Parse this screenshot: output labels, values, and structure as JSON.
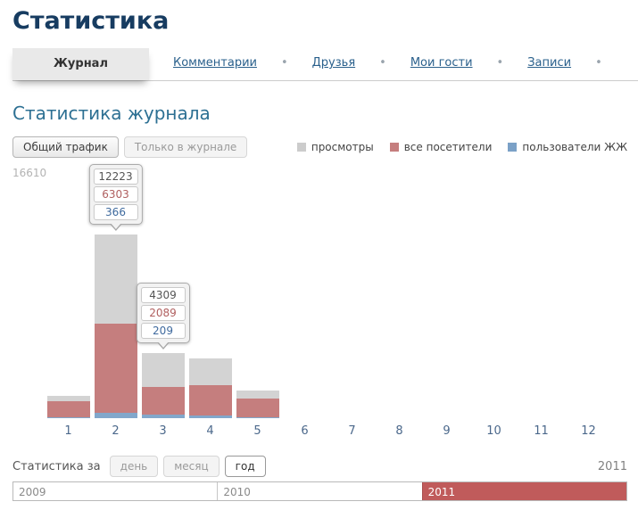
{
  "page": {
    "title": "Статистика"
  },
  "tabs": {
    "separator": "•",
    "items": [
      {
        "label": "Журнал",
        "active": true
      },
      {
        "label": "Комментарии",
        "active": false
      },
      {
        "label": "Друзья",
        "active": false
      },
      {
        "label": "Мои гости",
        "active": false
      },
      {
        "label": "Записи",
        "active": false
      }
    ]
  },
  "section": {
    "title": "Статистика журнала"
  },
  "traffic_toggle": {
    "options": [
      {
        "label": "Общий трафик",
        "active": true
      },
      {
        "label": "Только в журнале",
        "active": false
      }
    ]
  },
  "legend": {
    "items": [
      {
        "label": "просмотры",
        "color": "#cccccc"
      },
      {
        "label": "все посетители",
        "color": "#c57e7e"
      },
      {
        "label": "пользователи ЖЖ",
        "color": "#7ba1c7"
      }
    ]
  },
  "chart_data": {
    "type": "bar",
    "title": "Статистика журнала",
    "ylim": [
      0,
      16610
    ],
    "y_max_label": "16610",
    "legend_position": "top-right",
    "categories": [
      "1",
      "2",
      "3",
      "4",
      "5",
      "6",
      "7",
      "8",
      "9",
      "10",
      "11",
      "12"
    ],
    "series": [
      {
        "key": "views",
        "name": "просмотры",
        "color": "#d3d3d3",
        "values": [
          1500,
          12223,
          4309,
          4000,
          1850,
          0,
          0,
          0,
          0,
          0,
          0,
          0
        ]
      },
      {
        "key": "visitors",
        "name": "все посетители",
        "color": "#c57e7e",
        "values": [
          1150,
          6303,
          2089,
          2200,
          1300,
          0,
          0,
          0,
          0,
          0,
          0,
          0
        ]
      },
      {
        "key": "lj_users",
        "name": "пользователи ЖЖ",
        "color": "#82a7cb",
        "values": [
          80,
          366,
          209,
          150,
          50,
          0,
          0,
          0,
          0,
          0,
          0,
          0
        ]
      }
    ],
    "tooltips": [
      {
        "month": "2",
        "values": [
          "12223",
          "6303",
          "366"
        ]
      },
      {
        "month": "3",
        "values": [
          "4309",
          "2089",
          "209"
        ]
      }
    ]
  },
  "period": {
    "label": "Статистика за",
    "options": [
      {
        "label": "день",
        "active": false
      },
      {
        "label": "месяц",
        "active": false
      },
      {
        "label": "год",
        "active": true
      }
    ],
    "year_indicator": "2011"
  },
  "timeline": {
    "active_color": "#c05b5b",
    "segments": [
      {
        "label": "2009",
        "active": false
      },
      {
        "label": "2010",
        "active": false
      },
      {
        "label": "2011",
        "active": true
      }
    ]
  }
}
